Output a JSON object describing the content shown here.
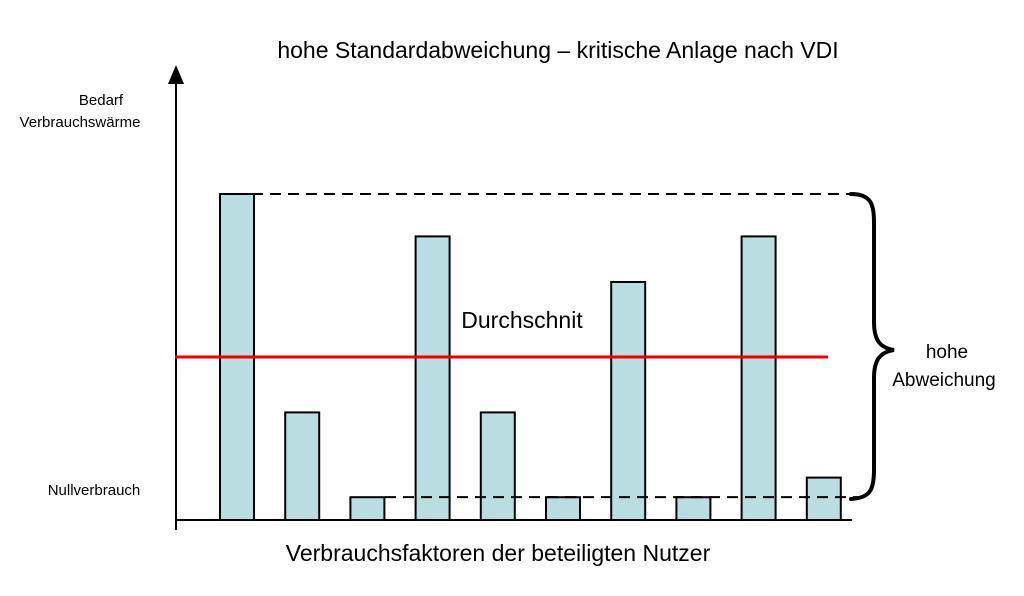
{
  "title": "hohe Standardabweichung – kritische Anlage nach VDI",
  "y_label": [
    "Bedarf",
    "Verbrauchswärme"
  ],
  "x_label": "Verbrauchsfaktoren der beteiligten Nutzer",
  "zero_label": "Nullverbrauch",
  "average_label": "Durchschnit",
  "deviation_label": [
    "hohe",
    "Abweichung"
  ],
  "colors": {
    "bar_fill": "#b9dde0",
    "bar_stroke": "#000000",
    "average_line": "#ee0000",
    "average_text": "#ee0000",
    "axis": "#000000"
  },
  "chart_data": {
    "type": "bar",
    "bar_count": 10,
    "values": [
      100,
      33,
      7,
      87,
      33,
      7,
      73,
      7,
      87,
      13
    ],
    "value_scale": "relative height, 0 = Nullverbrauch, 100 = tallest bar",
    "average_level": 50,
    "low_reference_level": 7,
    "high_reference_level": 100
  }
}
